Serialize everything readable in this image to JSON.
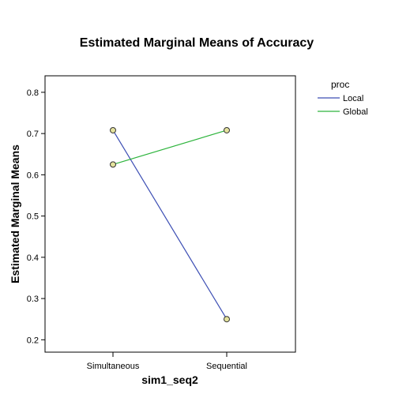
{
  "chart_data": {
    "type": "line",
    "title": "Estimated Marginal Means of Accuracy",
    "xlabel": "sim1_seq2",
    "ylabel": "Estimated Marginal Means",
    "categories": [
      "Simultaneous",
      "Sequential"
    ],
    "ylim": [
      0.17,
      0.84
    ],
    "yticks": [
      "0.2",
      "0.3",
      "0.4",
      "0.5",
      "0.6",
      "0.7",
      "0.8"
    ],
    "grid": false,
    "legend": {
      "title": "proc",
      "position": "right"
    },
    "series": [
      {
        "name": "Local",
        "color": "#3C4EB4",
        "values": [
          0.708,
          0.25
        ]
      },
      {
        "name": "Global",
        "color": "#2DB43C",
        "values": [
          0.625,
          0.708
        ]
      }
    ],
    "marker": {
      "fill": "#E4E29C",
      "stroke": "#333333"
    }
  }
}
